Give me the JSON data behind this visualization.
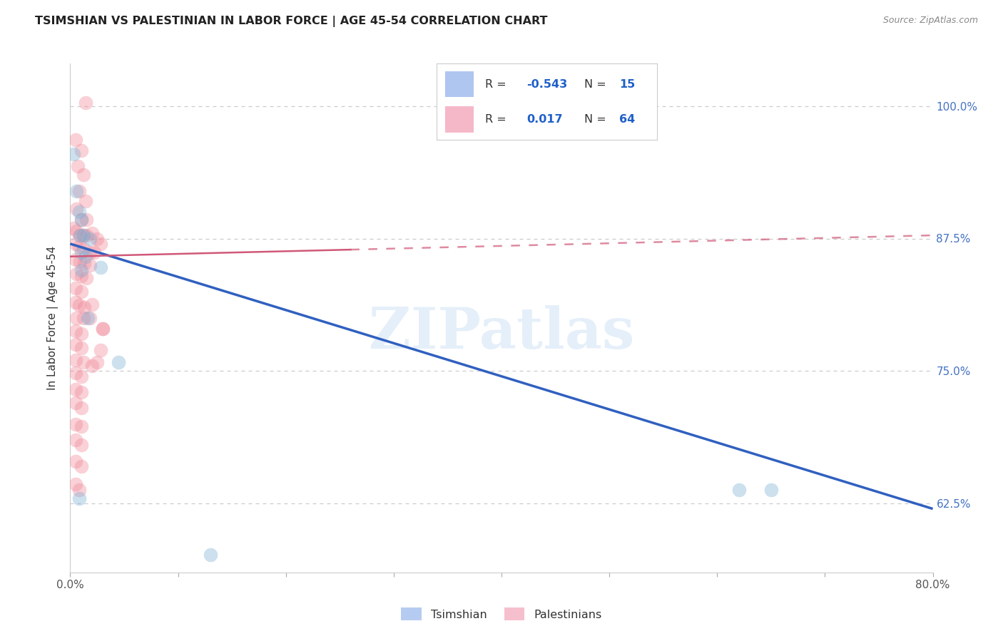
{
  "title": "TSIMSHIAN VS PALESTINIAN IN LABOR FORCE | AGE 45-54 CORRELATION CHART",
  "source": "Source: ZipAtlas.com",
  "ylabel": "In Labor Force | Age 45-54",
  "ytick_labels": [
    "62.5%",
    "75.0%",
    "87.5%",
    "100.0%"
  ],
  "ytick_values": [
    0.625,
    0.75,
    0.875,
    1.0
  ],
  "xlim": [
    0.0,
    0.8
  ],
  "ylim": [
    0.56,
    1.04
  ],
  "watermark": "ZIPatlas",
  "tsimshian_points": [
    [
      0.003,
      0.955
    ],
    [
      0.006,
      0.92
    ],
    [
      0.008,
      0.9
    ],
    [
      0.01,
      0.893
    ],
    [
      0.009,
      0.878
    ],
    [
      0.012,
      0.878
    ],
    [
      0.01,
      0.862
    ],
    [
      0.014,
      0.858
    ],
    [
      0.01,
      0.845
    ],
    [
      0.018,
      0.875
    ],
    [
      0.028,
      0.848
    ],
    [
      0.016,
      0.8
    ],
    [
      0.045,
      0.758
    ],
    [
      0.62,
      0.638
    ],
    [
      0.65,
      0.638
    ],
    [
      0.008,
      0.63
    ],
    [
      0.13,
      0.577
    ]
  ],
  "palestinian_points": [
    [
      0.014,
      1.003
    ],
    [
      0.005,
      0.968
    ],
    [
      0.01,
      0.958
    ],
    [
      0.007,
      0.943
    ],
    [
      0.012,
      0.935
    ],
    [
      0.008,
      0.92
    ],
    [
      0.014,
      0.91
    ],
    [
      0.006,
      0.903
    ],
    [
      0.01,
      0.893
    ],
    [
      0.015,
      0.893
    ],
    [
      0.003,
      0.885
    ],
    [
      0.006,
      0.882
    ],
    [
      0.009,
      0.878
    ],
    [
      0.012,
      0.878
    ],
    [
      0.015,
      0.878
    ],
    [
      0.02,
      0.88
    ],
    [
      0.025,
      0.875
    ],
    [
      0.005,
      0.87
    ],
    [
      0.008,
      0.867
    ],
    [
      0.012,
      0.865
    ],
    [
      0.018,
      0.862
    ],
    [
      0.022,
      0.862
    ],
    [
      0.028,
      0.87
    ],
    [
      0.005,
      0.855
    ],
    [
      0.009,
      0.853
    ],
    [
      0.013,
      0.852
    ],
    [
      0.018,
      0.85
    ],
    [
      0.006,
      0.842
    ],
    [
      0.01,
      0.84
    ],
    [
      0.015,
      0.838
    ],
    [
      0.005,
      0.828
    ],
    [
      0.01,
      0.825
    ],
    [
      0.005,
      0.815
    ],
    [
      0.008,
      0.812
    ],
    [
      0.013,
      0.81
    ],
    [
      0.02,
      0.813
    ],
    [
      0.03,
      0.79
    ],
    [
      0.006,
      0.8
    ],
    [
      0.012,
      0.8
    ],
    [
      0.018,
      0.8
    ],
    [
      0.005,
      0.788
    ],
    [
      0.01,
      0.785
    ],
    [
      0.005,
      0.775
    ],
    [
      0.01,
      0.772
    ],
    [
      0.005,
      0.76
    ],
    [
      0.012,
      0.758
    ],
    [
      0.005,
      0.748
    ],
    [
      0.01,
      0.745
    ],
    [
      0.005,
      0.733
    ],
    [
      0.01,
      0.73
    ],
    [
      0.005,
      0.72
    ],
    [
      0.01,
      0.715
    ],
    [
      0.005,
      0.7
    ],
    [
      0.01,
      0.698
    ],
    [
      0.005,
      0.685
    ],
    [
      0.01,
      0.68
    ],
    [
      0.005,
      0.665
    ],
    [
      0.01,
      0.66
    ],
    [
      0.005,
      0.643
    ],
    [
      0.008,
      0.638
    ],
    [
      0.03,
      0.79
    ],
    [
      0.025,
      0.758
    ],
    [
      0.028,
      0.77
    ],
    [
      0.02,
      0.755
    ]
  ],
  "blue_line": {
    "x0": 0.0,
    "y0": 0.87,
    "x1": 0.8,
    "y1": 0.62
  },
  "pink_line": {
    "x0": 0.0,
    "y0": 0.858,
    "x1": 0.8,
    "y1": 0.878
  },
  "tsimshian_color": "#7aafd4",
  "tsimshian_edge": "#5b9cc4",
  "palestinian_color": "#f08898",
  "palestinian_edge": "#e06878",
  "blue_line_color": "#3060c0",
  "pink_line_color": "#d05878",
  "pink_line_solid_end": 0.26,
  "grid_color": "#cccccc",
  "background_color": "#ffffff",
  "legend_R_color": "#2060c8",
  "legend_text_color": "#333333",
  "legend_tsim_color": "#aec6f0",
  "legend_pal_color": "#f5b8c8"
}
